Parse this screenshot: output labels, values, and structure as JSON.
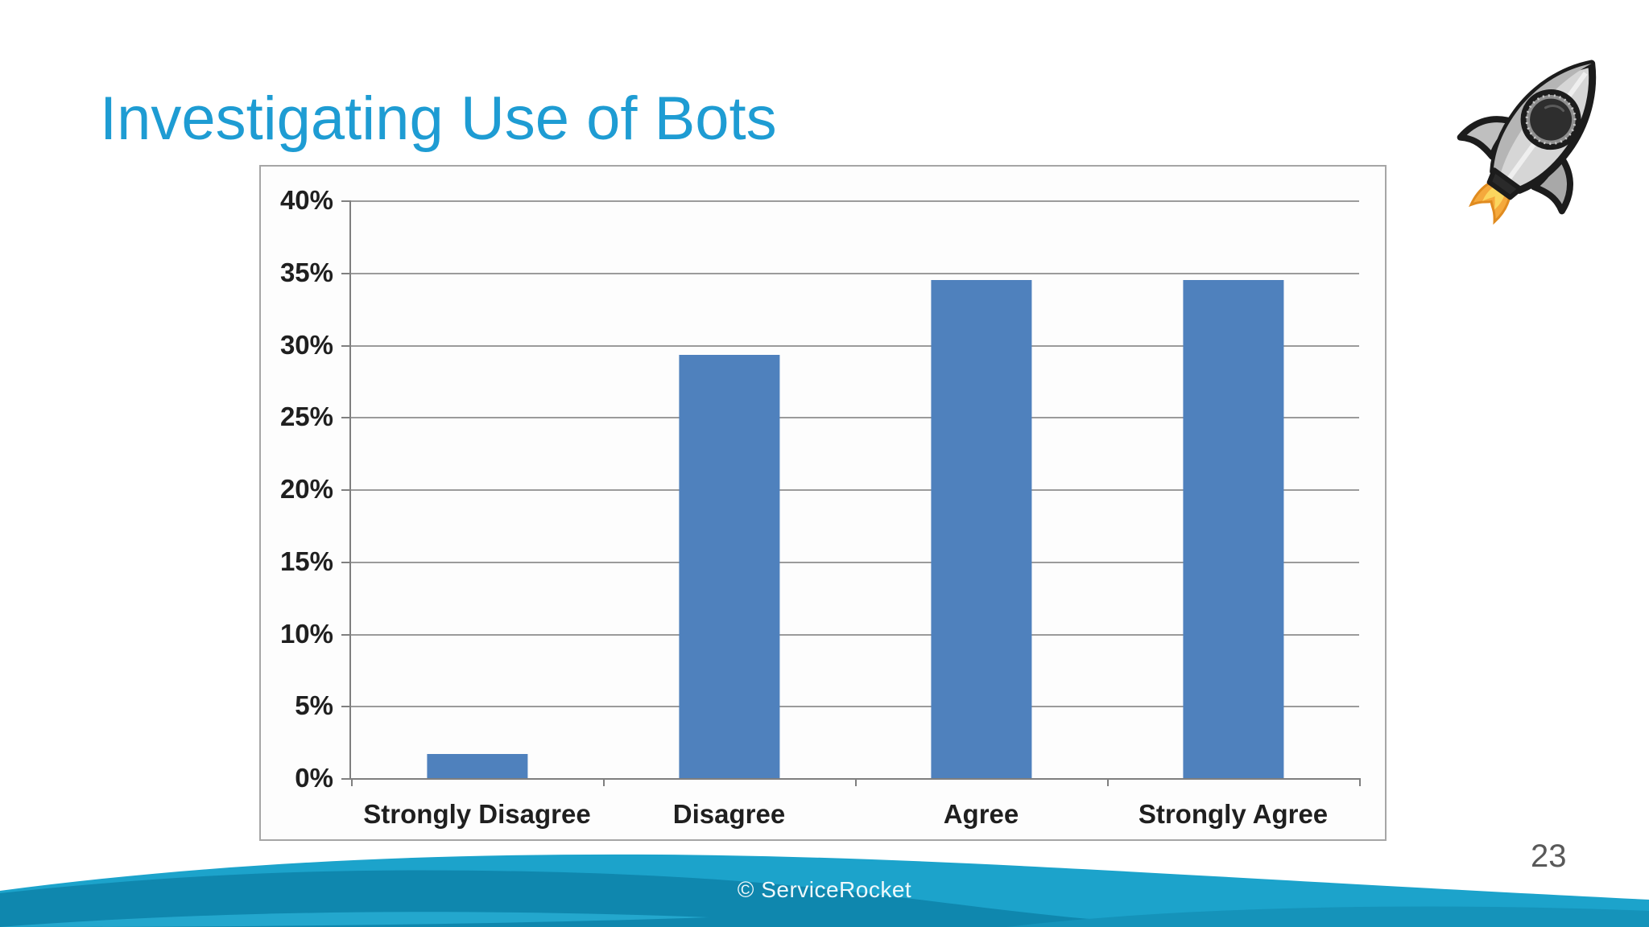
{
  "slide": {
    "title": "Investigating Use of Bots",
    "title_color": "#1E9CD3",
    "page_number": "23",
    "footer": "© ServiceRocket"
  },
  "logo": {
    "name": "rocket-logo",
    "body_color": "#d6d6d6",
    "shade_color": "#b5b5b5",
    "outline_color": "#1c1c1c",
    "flame_color": "#f5a93c"
  },
  "wave": {
    "light": "#1CA3CB",
    "dark": "#0F87AE",
    "mid": "#1593BA",
    "accent": "#23A7CD"
  },
  "chart_data": {
    "type": "bar",
    "title": "",
    "xlabel": "",
    "ylabel": "",
    "categories": [
      "Strongly Disagree",
      "Disagree",
      "Agree",
      "Strongly Agree"
    ],
    "values": [
      1.7,
      29.3,
      34.5,
      34.5
    ],
    "bar_color": "#4F81BD",
    "ylim": [
      0,
      40
    ],
    "yticks": [
      0,
      5,
      10,
      15,
      20,
      25,
      30,
      35,
      40
    ],
    "ytick_suffix": "%",
    "grid": true,
    "legend": false,
    "bar_centers_pct": [
      12.5,
      37.5,
      62.5,
      87.5
    ]
  }
}
